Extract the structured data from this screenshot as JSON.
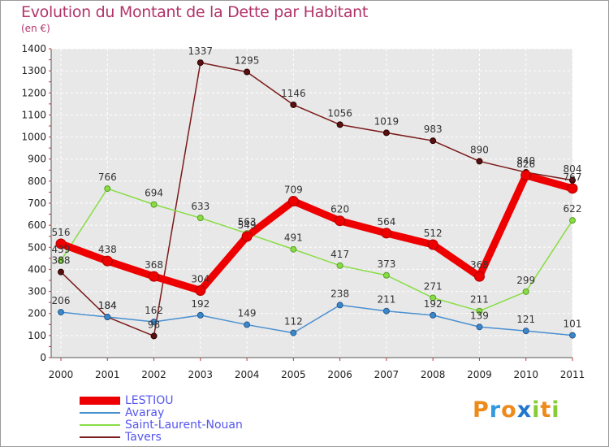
{
  "title": "Evolution du Montant de la Dette par Habitant",
  "unit": "(en €)",
  "logo": {
    "text": "Proxiti"
  },
  "chart_data": {
    "type": "line",
    "title": "Evolution du Montant de la Dette par Habitant",
    "subtitle": "(en €)",
    "xlabel": "",
    "ylabel": "",
    "x": [
      "2000",
      "2001",
      "2002",
      "2003",
      "2004",
      "2005",
      "2006",
      "2007",
      "2008",
      "2009",
      "2010",
      "2011"
    ],
    "ylim": [
      0,
      1400
    ],
    "yticks": [
      "0",
      "100",
      "200",
      "300",
      "400",
      "500",
      "600",
      "700",
      "800",
      "900",
      "1000",
      "1100",
      "1200",
      "1300",
      "1400"
    ],
    "grid": true,
    "legend_position": "bottom-left",
    "series": [
      {
        "name": "LESTIOU",
        "color": "#ee0000",
        "values": [
          516,
          438,
          368,
          304,
          549,
          709,
          620,
          564,
          512,
          368,
          826,
          767
        ]
      },
      {
        "name": "Avaray",
        "color": "#4a90d0",
        "values": [
          206,
          184,
          162,
          192,
          149,
          112,
          238,
          211,
          192,
          139,
          121,
          101
        ]
      },
      {
        "name": "Saint-Laurent-Nouan",
        "color": "#88dd44",
        "values": [
          439,
          766,
          694,
          633,
          563,
          491,
          417,
          373,
          271,
          211,
          299,
          622
        ]
      },
      {
        "name": "Tavers",
        "color": "#7a1a1a",
        "values": [
          388,
          184,
          98,
          1337,
          1295,
          1146,
          1056,
          1019,
          983,
          890,
          840,
          804
        ]
      }
    ]
  }
}
